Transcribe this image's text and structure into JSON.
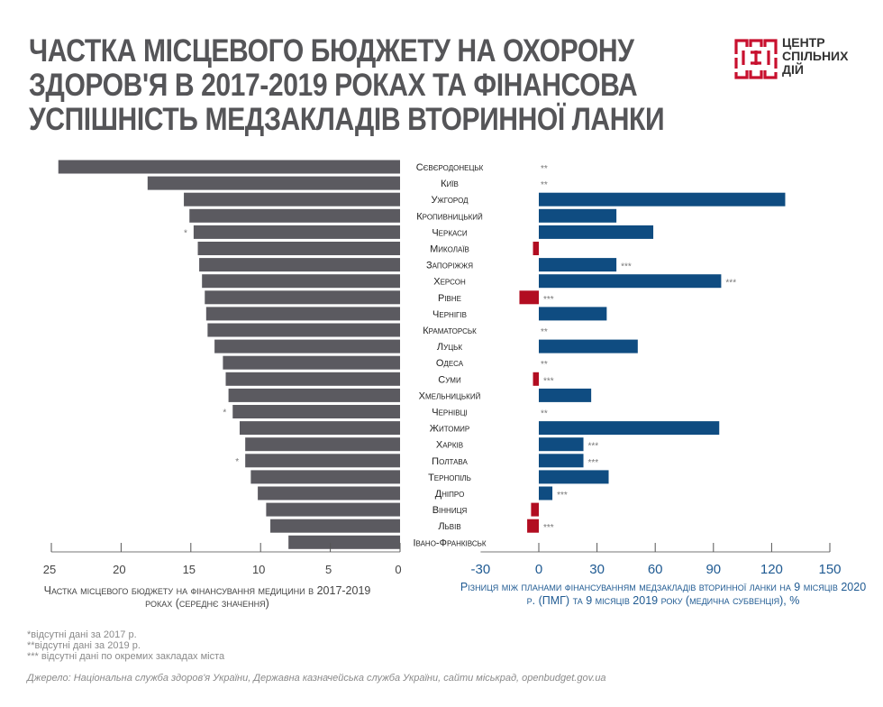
{
  "header": {
    "title_lines": [
      "ЧАСТКА МІСЦЕВОГО БЮДЖЕТУ НА ОХОРОНУ",
      "ЗДОРОВ'Я В 2017-2019 РОКАХ ТА ФІНАНСОВА",
      "УСПІШНІСТЬ МЕДЗАКЛАДІВ ВТОРИННОЇ ЛАНКИ"
    ],
    "logo_lines": [
      "ЦЕНТР",
      "СПІЛЬНИХ",
      "ДІЙ"
    ],
    "logo_color": "#c8102e"
  },
  "colors": {
    "left_bar": "#5b5a60",
    "positive_bar": "#0f4c81",
    "negative_bar": "#b20d21",
    "left_axis_text": "#444444",
    "right_axis_text": "#1f5a92"
  },
  "chart_data": [
    {
      "type": "bar",
      "orientation": "horizontal",
      "direction": "right-to-left",
      "title": "",
      "xlabel": "Частка місцевого бюджету на фінансування медицини в 2017-2019 роках (середнє значення)",
      "ylabel": "",
      "xlim": [
        0,
        25
      ],
      "xticks": [
        25,
        20,
        15,
        10,
        5,
        0
      ],
      "categories": [
        "Сєвєродонецьк",
        "Київ",
        "Ужгород",
        "Кропивницький",
        "Черкаси",
        "Миколаїв",
        "Запоріжжя",
        "Херсон",
        "Рівне",
        "Чернігів",
        "Краматорськ",
        "Луцьк",
        "Одеса",
        "Суми",
        "Хмельницький",
        "Чернівці",
        "Житомир",
        "Харків",
        "Полтава",
        "Тернопіль",
        "Дніпро",
        "Вінниця",
        "Львів",
        "Івано-Франківськ"
      ],
      "values": [
        24.5,
        18.1,
        15.5,
        15.1,
        14.8,
        14.5,
        14.4,
        14.2,
        14.0,
        13.9,
        13.8,
        13.3,
        12.7,
        12.5,
        12.3,
        12.0,
        11.5,
        11.1,
        11.1,
        10.7,
        10.2,
        9.6,
        9.3,
        8.0
      ],
      "annotations": [
        "",
        "",
        "",
        "",
        "*",
        "",
        "",
        "",
        "",
        "",
        "",
        "",
        "",
        "",
        "",
        "*",
        "",
        "",
        "*",
        "",
        "",
        "",
        "",
        ""
      ],
      "grid": false,
      "legend": "none"
    },
    {
      "type": "bar",
      "orientation": "horizontal",
      "title": "",
      "xlabel": "Різниця між планами фінансуванням медзакладів вторинної ланки на 9 місяців 2020 р. (ПМГ) та 9 місяців 2019 року (медична субвенція), %",
      "ylabel": "",
      "xlim": [
        -30,
        150
      ],
      "xticks": [
        -30,
        0,
        30,
        60,
        90,
        120,
        150
      ],
      "categories": [
        "Сєвєродонецьк",
        "Київ",
        "Ужгород",
        "Кропивницький",
        "Черкаси",
        "Миколаїв",
        "Запоріжжя",
        "Херсон",
        "Рівне",
        "Чернігів",
        "Краматорськ",
        "Луцьк",
        "Одеса",
        "Суми",
        "Хмельницький",
        "Чернівці",
        "Житомир",
        "Харків",
        "Полтава",
        "Тернопіль",
        "Дніпро",
        "Вінниця",
        "Львів",
        "Івано-Франківськ"
      ],
      "values": [
        null,
        null,
        127,
        40,
        59,
        -3,
        40,
        94,
        -10,
        35,
        null,
        51,
        null,
        -3,
        27,
        null,
        93,
        23,
        23,
        36,
        7,
        -4,
        -6,
        null
      ],
      "annotations": [
        "**",
        "**",
        "",
        "",
        "",
        "",
        "***",
        "***",
        "***",
        "",
        "**",
        "",
        "**",
        "***",
        "",
        "**",
        "",
        "***",
        "***",
        "",
        "***",
        "",
        "***",
        ""
      ],
      "grid": false,
      "legend": "none"
    }
  ],
  "notes": [
    "*відсутні дані за 2017 р.",
    "**відсутні дані за 2019 р.",
    "*** відсутні дані по окремих закладах міста"
  ],
  "source": "Джерело: Національна служба здоров'я України, Державна казначейська служба України, сайти міськрад, openbudget.gov.ua"
}
